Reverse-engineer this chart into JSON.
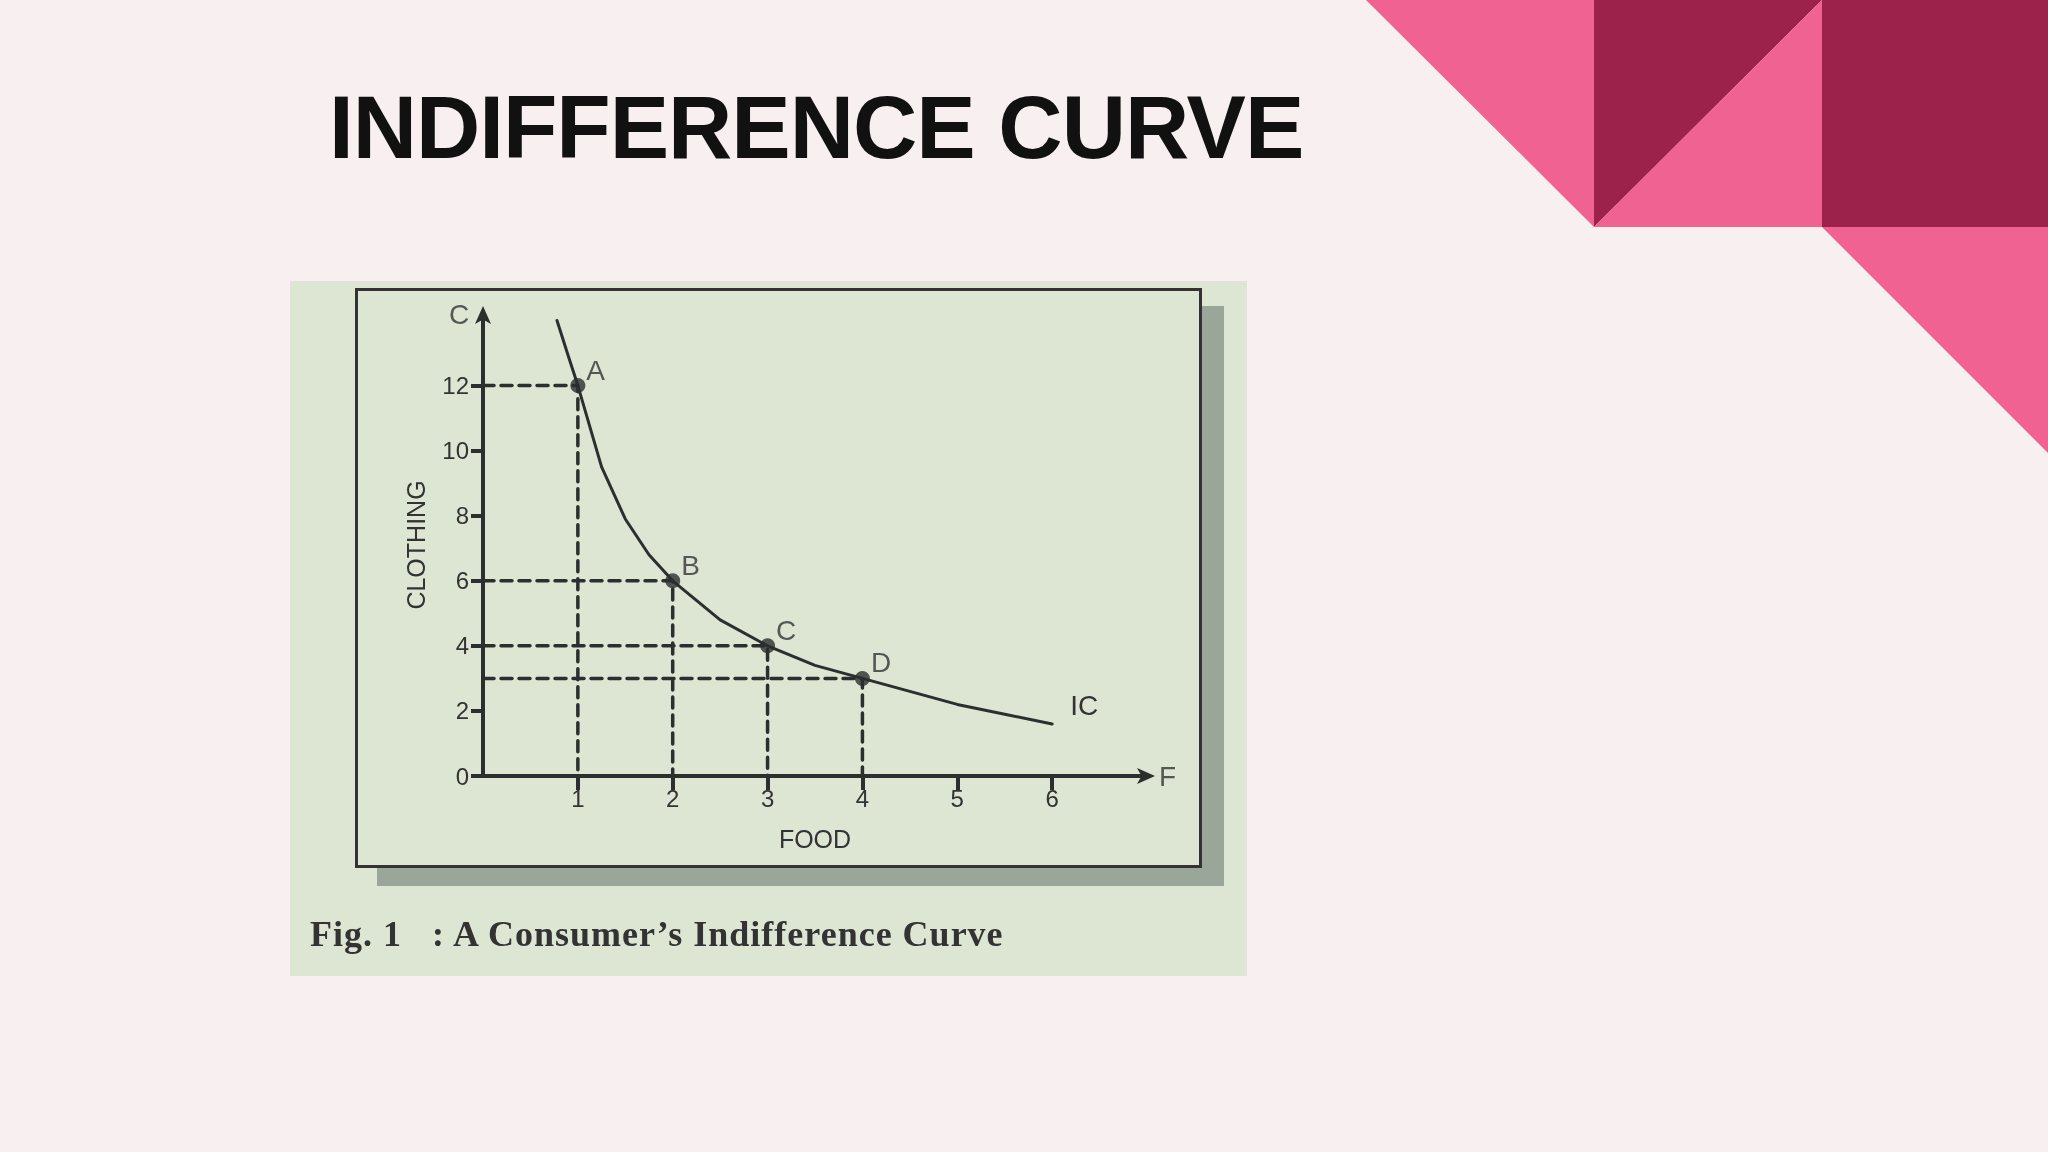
{
  "chart_data": {
    "type": "line",
    "title": "INDIFFERENCE CURVE",
    "xlabel": "FOOD",
    "ylabel": "CLOTHING",
    "annotations": [
      {
        "text": "C",
        "x": 0,
        "y": 14.2
      },
      {
        "text": "F",
        "x": 7,
        "y": 0
      },
      "Fig. 1   : A Consumer’s Indifference Curve"
    ],
    "xlim": [
      0,
      7
    ],
    "ylim": [
      0,
      14.2
    ],
    "xticks": [
      1,
      2,
      3,
      4,
      5,
      6
    ],
    "yticks": [
      0,
      2,
      4,
      6,
      8,
      10,
      12
    ],
    "series": [
      {
        "name": "IC",
        "color": "#2b2f2e",
        "marker": "none",
        "line_style": "solid",
        "x": [
          0.78,
          0.9,
          1,
          1.25,
          1.5,
          1.75,
          2,
          2.5,
          3,
          3.5,
          4,
          4.5,
          5,
          5.5,
          6
        ],
        "values": [
          14,
          12.9,
          12,
          9.5,
          7.9,
          6.8,
          6,
          4.8,
          4,
          3.4,
          3,
          2.6,
          2.2,
          1.9,
          1.6
        ]
      },
      {
        "type": "scatter",
        "color": "#2b2f2e",
        "marker": "circle",
        "x": [
          1,
          2,
          3,
          4
        ],
        "values": [
          12,
          6,
          4,
          3
        ],
        "value_labels": [
          "A",
          "B",
          "C",
          "D"
        ]
      },
      {
        "type": "line",
        "color": "#2b2f2e",
        "marker": "none",
        "line_style": "dashed",
        "x": [
          0,
          1,
          1
        ],
        "values": [
          12,
          12,
          0
        ]
      },
      {
        "type": "line",
        "color": "#2b2f2e",
        "marker": "none",
        "line_style": "dashed",
        "x": [
          0,
          2,
          2
        ],
        "values": [
          6,
          6,
          0
        ]
      },
      {
        "type": "line",
        "color": "#2b2f2e",
        "marker": "none",
        "line_style": "dashed",
        "x": [
          0,
          3,
          3
        ],
        "values": [
          4,
          4,
          0
        ]
      },
      {
        "type": "line",
        "color": "#2b2f2e",
        "marker": "none",
        "line_style": "dashed",
        "x": [
          0,
          4,
          4
        ],
        "values": [
          3,
          3,
          0
        ]
      }
    ]
  }
}
